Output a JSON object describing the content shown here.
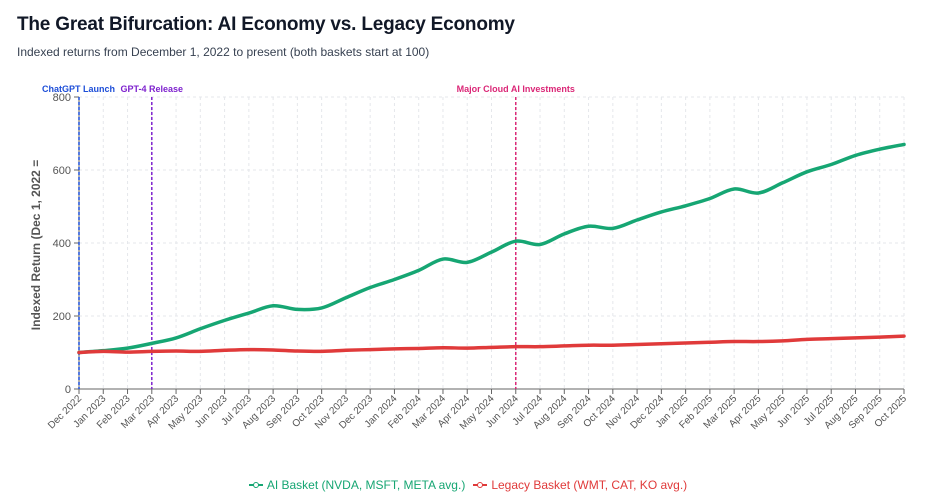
{
  "header": {
    "title": "The Great Bifurcation: AI Economy vs. Legacy Economy",
    "subtitle": "Indexed returns from December 1, 2022 to present (both baskets start at 100)"
  },
  "chart_data": {
    "type": "line",
    "ylabel": "Indexed Return (Dec 1, 2022 =",
    "ylim": [
      0,
      800
    ],
    "yticks": [
      0,
      200,
      400,
      600,
      800
    ],
    "grid": true,
    "legend_position": "bottom",
    "categories": [
      "Dec 2022",
      "Jan 2023",
      "Feb 2023",
      "Mar 2023",
      "Apr 2023",
      "May 2023",
      "Jun 2023",
      "Jul 2023",
      "Aug 2023",
      "Sep 2023",
      "Oct 2023",
      "Nov 2023",
      "Dec 2023",
      "Jan 2024",
      "Feb 2024",
      "Mar 2024",
      "Apr 2024",
      "May 2024",
      "Jun 2024",
      "Jul 2024",
      "Aug 2024",
      "Sep 2024",
      "Oct 2024",
      "Nov 2024",
      "Dec 2024",
      "Jan 2025",
      "Feb 2025",
      "Mar 2025",
      "Apr 2025",
      "May 2025",
      "Jun 2025",
      "Jul 2025",
      "Aug 2025",
      "Sep 2025",
      "Oct 2025"
    ],
    "series": [
      {
        "name": "AI Basket (NVDA, MSFT, META avg.)",
        "color": "#16a673",
        "values": [
          100,
          105,
          112,
          125,
          140,
          165,
          188,
          208,
          228,
          218,
          222,
          250,
          278,
          300,
          325,
          356,
          347,
          375,
          405,
          396,
          425,
          446,
          440,
          463,
          485,
          502,
          522,
          548,
          537,
          565,
          595,
          615,
          640,
          657,
          670
        ]
      },
      {
        "name": "Legacy Basket (WMT, CAT, KO avg.)",
        "color": "#e03a3a",
        "values": [
          100,
          103,
          101,
          103,
          104,
          103,
          106,
          108,
          107,
          104,
          103,
          106,
          108,
          110,
          111,
          113,
          112,
          114,
          116,
          116,
          118,
          120,
          120,
          122,
          124,
          126,
          128,
          130,
          130,
          132,
          136,
          138,
          140,
          142,
          145
        ]
      }
    ],
    "annotations": [
      {
        "label": "ChatGPT Launch",
        "x": "Dec 2022",
        "color": "#1d4ed8"
      },
      {
        "label": "GPT-4 Release",
        "x": "Mar 2023",
        "color": "#7e22ce"
      },
      {
        "label": "Major Cloud AI Investments",
        "x": "Jun 2024",
        "color": "#db2777"
      }
    ]
  }
}
